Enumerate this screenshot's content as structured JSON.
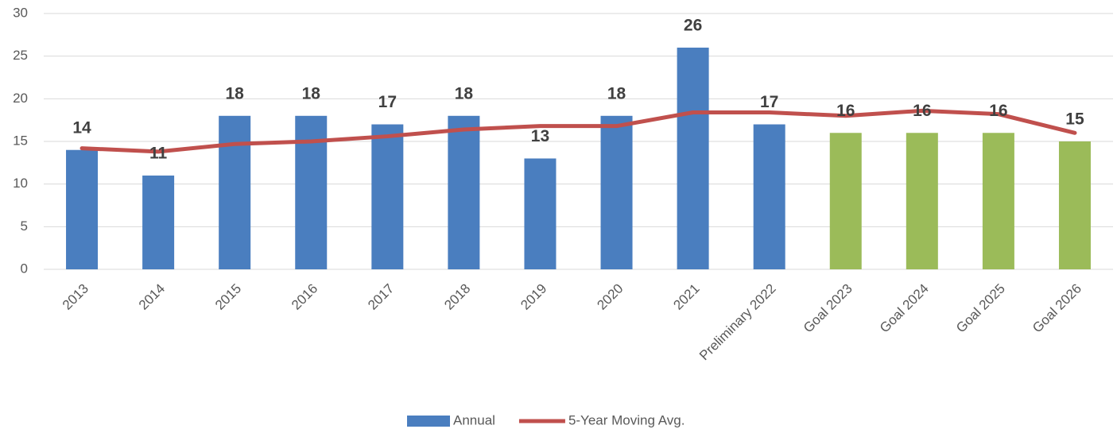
{
  "chart_data": {
    "type": "bar_line",
    "categories": [
      "2013",
      "2014",
      "2015",
      "2016",
      "2017",
      "2018",
      "2019",
      "2020",
      "2021",
      "Preliminary 2022",
      "Goal 2023",
      "Goal 2024",
      "Goal 2025",
      "Goal 2026"
    ],
    "series": [
      {
        "name": "Annual",
        "type": "bar",
        "color": "#4a7ebf",
        "colors": [
          "#4a7ebf",
          "#4a7ebf",
          "#4a7ebf",
          "#4a7ebf",
          "#4a7ebf",
          "#4a7ebf",
          "#4a7ebf",
          "#4a7ebf",
          "#4a7ebf",
          "#4a7ebf",
          "#9bbb59",
          "#9bbb59",
          "#9bbb59",
          "#9bbb59"
        ],
        "values": [
          14,
          11,
          18,
          18,
          17,
          18,
          13,
          18,
          26,
          17,
          16,
          16,
          16,
          15
        ]
      },
      {
        "name": "5-Year Moving Avg.",
        "type": "line",
        "color": "#c0504d",
        "values": [
          14.2,
          13.8,
          14.7,
          15.0,
          15.6,
          16.4,
          16.8,
          16.8,
          18.4,
          18.4,
          18.0,
          18.6,
          18.2,
          16.0
        ]
      }
    ],
    "ylim": [
      0,
      30
    ],
    "yticks": [
      0,
      5,
      10,
      15,
      20,
      25,
      30
    ],
    "grid": true,
    "legend": "bottom"
  }
}
